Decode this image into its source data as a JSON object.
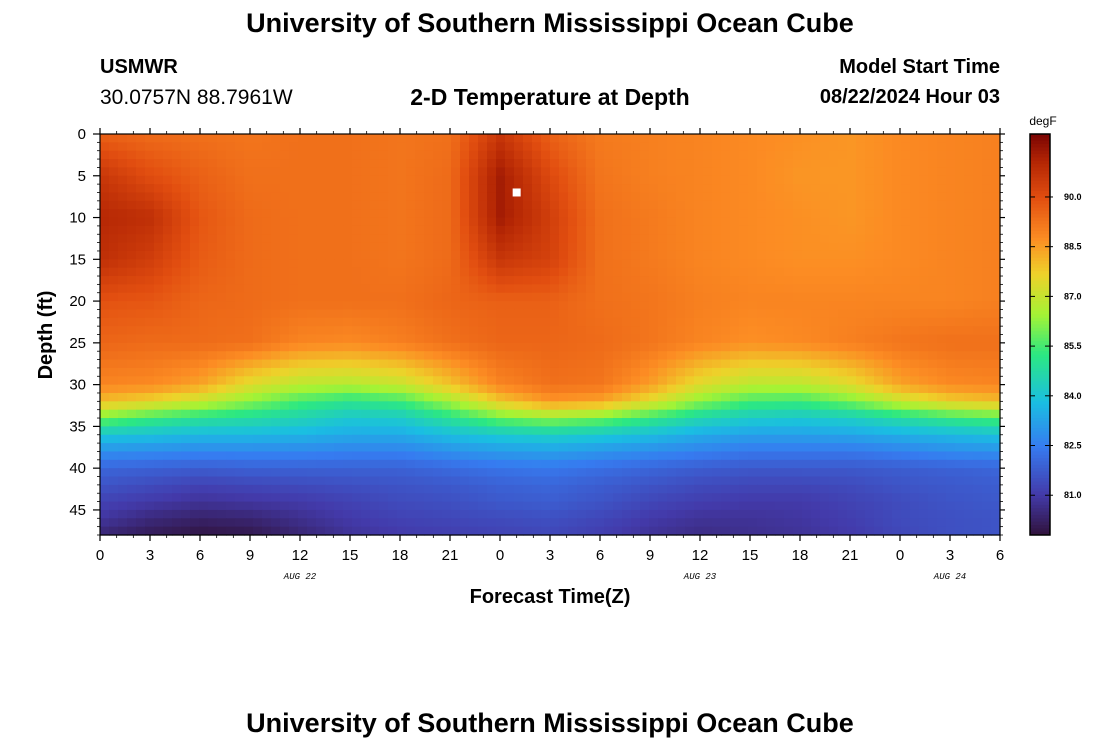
{
  "page": {
    "title_top": "University of Southern Mississippi Ocean Cube",
    "title_bottom": "University of Southern Mississippi Ocean Cube"
  },
  "header": {
    "station_name": "USMWR",
    "station_coords": "30.0757N  88.7961W",
    "plot_title": "2-D Temperature at Depth",
    "model_start_label": "Model Start Time",
    "model_start_value": "08/22/2024 Hour 03"
  },
  "chart_data": {
    "type": "heatmap",
    "title": "2-D Temperature at Depth",
    "xlabel": "Forecast Time(Z)",
    "ylabel": "Depth (ft)",
    "x_range_hours": [
      0,
      54
    ],
    "x_ticks": [
      "0",
      "3",
      "6",
      "9",
      "12",
      "15",
      "18",
      "21",
      "0",
      "3",
      "6",
      "9",
      "12",
      "15",
      "18",
      "21",
      "0",
      "3",
      "6"
    ],
    "date_labels": [
      {
        "text": "AUG 22",
        "hour": 12
      },
      {
        "text": "AUG 23",
        "hour": 36
      },
      {
        "text": "AUG 24",
        "hour": 51
      }
    ],
    "ylim": [
      0,
      48
    ],
    "y_ticks": [
      "0",
      "5",
      "10",
      "15",
      "20",
      "25",
      "30",
      "35",
      "40",
      "45"
    ],
    "y_tick_values": [
      0,
      5,
      10,
      15,
      20,
      25,
      30,
      35,
      40,
      45
    ],
    "colorbar": {
      "unit": "degF",
      "range": [
        79.8,
        91.9
      ],
      "tick_labels": [
        "81.0",
        "82.5",
        "84.0",
        "85.5",
        "87.0",
        "88.5",
        "90.0"
      ],
      "tick_values": [
        81.0,
        82.5,
        84.0,
        85.5,
        87.0,
        88.5,
        90.0
      ]
    },
    "marker": {
      "hour": 25,
      "depth_ft": 7,
      "shape": "square",
      "color": "#ffffff"
    },
    "x_hours": [
      0,
      3,
      6,
      9,
      12,
      15,
      18,
      21,
      24,
      27,
      30,
      33,
      36,
      39,
      42,
      45,
      48,
      51,
      54
    ],
    "depths_ft": [
      0,
      5,
      10,
      15,
      20,
      25,
      30,
      32,
      34,
      36,
      38,
      40,
      42,
      44,
      46,
      48
    ],
    "values_degF": [
      [
        89.6,
        89.4,
        89.3,
        89.2,
        89.3,
        89.3,
        89.2,
        89.3,
        90.6,
        89.6,
        89.1,
        89.0,
        88.9,
        88.8,
        88.7,
        88.6,
        88.8,
        88.9,
        89.0
      ],
      [
        90.6,
        90.0,
        89.6,
        89.3,
        89.3,
        89.3,
        89.2,
        89.4,
        91.3,
        90.1,
        89.2,
        89.0,
        88.9,
        88.8,
        88.6,
        88.6,
        88.8,
        88.9,
        89.0
      ],
      [
        91.0,
        90.8,
        89.8,
        89.4,
        89.3,
        89.3,
        89.2,
        89.4,
        91.3,
        90.4,
        89.3,
        89.1,
        88.9,
        88.8,
        88.7,
        88.6,
        88.8,
        88.9,
        89.0
      ],
      [
        90.8,
        90.4,
        89.7,
        89.4,
        89.3,
        89.3,
        89.2,
        89.4,
        90.6,
        90.3,
        89.3,
        89.1,
        88.9,
        88.8,
        88.7,
        88.7,
        88.8,
        88.9,
        89.0
      ],
      [
        89.9,
        89.8,
        89.5,
        89.4,
        89.3,
        89.3,
        89.3,
        89.5,
        89.6,
        89.6,
        89.3,
        89.2,
        89.0,
        88.9,
        88.9,
        88.9,
        88.9,
        88.9,
        89.0
      ],
      [
        89.5,
        89.4,
        89.4,
        89.3,
        88.9,
        88.8,
        89.0,
        89.3,
        89.5,
        89.5,
        89.4,
        89.2,
        88.9,
        88.7,
        88.8,
        89.0,
        89.2,
        89.3,
        89.3
      ],
      [
        88.9,
        88.8,
        88.4,
        87.4,
        86.8,
        86.7,
        87.0,
        87.9,
        88.9,
        89.3,
        89.2,
        88.5,
        87.4,
        86.8,
        86.8,
        87.4,
        88.4,
        88.8,
        88.9
      ],
      [
        88.0,
        87.6,
        87.0,
        86.2,
        85.5,
        85.1,
        85.4,
        86.5,
        87.8,
        88.6,
        88.4,
        87.4,
        86.2,
        85.5,
        85.4,
        86.0,
        87.0,
        87.7,
        88.0
      ],
      [
        86.0,
        85.4,
        85.0,
        84.8,
        84.5,
        84.1,
        84.2,
        85.0,
        85.9,
        86.3,
        86.0,
        85.3,
        84.6,
        84.2,
        84.1,
        84.3,
        84.8,
        85.3,
        85.6
      ],
      [
        84.0,
        83.9,
        83.7,
        83.7,
        83.6,
        83.4,
        83.4,
        83.8,
        84.1,
        84.3,
        84.1,
        83.8,
        83.4,
        83.2,
        83.2,
        83.3,
        83.5,
        83.7,
        83.9
      ],
      [
        82.9,
        82.8,
        82.7,
        82.7,
        82.7,
        82.6,
        82.6,
        82.9,
        83.1,
        83.2,
        83.0,
        82.8,
        82.6,
        82.4,
        82.4,
        82.4,
        82.6,
        82.8,
        82.9
      ],
      [
        82.0,
        81.9,
        81.8,
        81.9,
        81.9,
        81.9,
        81.9,
        82.1,
        82.3,
        82.4,
        82.2,
        82.0,
        81.8,
        81.7,
        81.7,
        81.7,
        81.8,
        81.9,
        82.0
      ],
      [
        81.6,
        81.4,
        81.2,
        81.3,
        81.4,
        81.5,
        81.6,
        81.7,
        81.9,
        82.0,
        81.8,
        81.6,
        81.4,
        81.3,
        81.3,
        81.4,
        81.6,
        81.7,
        81.8
      ],
      [
        81.2,
        81.0,
        80.8,
        80.9,
        81.0,
        81.2,
        81.4,
        81.5,
        81.7,
        81.8,
        81.6,
        81.3,
        81.1,
        81.0,
        81.0,
        81.2,
        81.4,
        81.6,
        81.7
      ],
      [
        80.9,
        80.5,
        80.3,
        80.4,
        80.7,
        81.0,
        81.2,
        81.3,
        81.4,
        81.5,
        81.3,
        81.0,
        80.8,
        80.8,
        80.9,
        81.1,
        81.4,
        81.5,
        81.6
      ],
      [
        80.4,
        80.1,
        79.9,
        80.0,
        80.4,
        80.8,
        81.0,
        81.1,
        81.2,
        81.3,
        81.1,
        80.8,
        80.6,
        80.7,
        80.8,
        81.0,
        81.3,
        81.5,
        81.6
      ]
    ]
  }
}
